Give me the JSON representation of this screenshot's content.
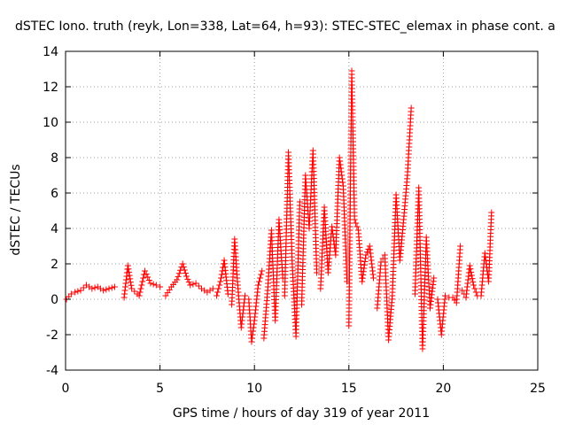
{
  "chart_data": {
    "type": "scatter",
    "title": "dSTEC Iono. truth (reyk, Lon=338, Lat=64, h=93): STEC-STEC_elemax in phase cont. a",
    "xlabel": "GPS time / hours of day 319 of year 2011",
    "ylabel": "dSTEC  / TECUs",
    "xlim": [
      0,
      25
    ],
    "ylim": [
      -4,
      14
    ],
    "xticks": [
      0,
      5,
      10,
      15,
      20,
      25
    ],
    "yticks": [
      -4,
      -2,
      0,
      2,
      4,
      6,
      8,
      10,
      12,
      14
    ],
    "grid": true,
    "marker": "+",
    "color": "#ff0000",
    "series": [
      {
        "segments": [
          {
            "x": [
              0.05,
              0.3,
              0.5,
              0.8,
              1.1,
              1.4,
              1.7,
              2.0,
              2.3,
              2.6
            ],
            "y": [
              0.0,
              0.3,
              0.4,
              0.5,
              0.8,
              0.6,
              0.7,
              0.5,
              0.6,
              0.7
            ]
          },
          {
            "x": [
              3.1,
              3.3,
              3.5,
              3.8
            ],
            "y": [
              0.1,
              1.9,
              0.6,
              0.3
            ]
          },
          {
            "x": [
              3.9,
              4.2,
              4.5,
              4.8,
              5.0
            ],
            "y": [
              0.2,
              1.6,
              0.9,
              0.8,
              0.7
            ]
          },
          {
            "x": [
              5.3,
              5.6,
              5.9,
              6.2,
              6.4,
              6.6,
              6.9,
              7.2,
              7.5,
              7.8
            ],
            "y": [
              0.2,
              0.7,
              1.1,
              2.0,
              1.3,
              0.8,
              0.9,
              0.6,
              0.4,
              0.6
            ]
          },
          {
            "x": [
              8.0,
              8.2,
              8.4,
              8.6
            ],
            "y": [
              0.2,
              1.0,
              2.2,
              0.3
            ]
          },
          {
            "x": [
              8.8,
              8.95,
              9.1,
              9.3,
              9.5
            ],
            "y": [
              -0.3,
              3.4,
              1.0,
              -1.6,
              0.2
            ]
          },
          {
            "x": [
              9.7,
              9.85,
              10.0,
              10.2,
              10.4
            ],
            "y": [
              0.0,
              -2.4,
              -1.2,
              0.8,
              1.6
            ]
          },
          {
            "x": [
              10.5,
              10.7,
              10.9,
              11.1,
              11.3,
              11.5
            ],
            "y": [
              -2.2,
              0.5,
              3.9,
              -1.2,
              4.5,
              1.2
            ]
          },
          {
            "x": [
              11.6,
              11.8,
              12.0,
              12.2,
              12.4
            ],
            "y": [
              0.2,
              8.3,
              2.0,
              -2.1,
              5.5
            ]
          },
          {
            "x": [
              12.5,
              12.7,
              12.9,
              13.1,
              13.3
            ],
            "y": [
              -0.3,
              7.0,
              4.0,
              8.4,
              1.5
            ]
          },
          {
            "x": [
              13.5,
              13.7,
              13.9,
              14.1,
              14.3,
              14.5,
              14.7,
              14.9
            ],
            "y": [
              0.6,
              5.2,
              1.5,
              4.1,
              2.5,
              8.0,
              6.4,
              1.0
            ]
          },
          {
            "x": [
              15.0,
              15.15,
              15.3,
              15.5,
              15.7,
              15.9,
              16.1,
              16.3
            ],
            "y": [
              -1.5,
              12.9,
              4.5,
              3.9,
              1.0,
              2.5,
              3.0,
              1.2
            ]
          },
          {
            "x": [
              16.5,
              16.7,
              16.9,
              17.1,
              17.3,
              17.5,
              17.7,
              17.9,
              18.1,
              18.3
            ],
            "y": [
              -0.5,
              2.1,
              2.5,
              -2.3,
              0.2,
              5.9,
              2.2,
              4.5,
              7.0,
              10.8
            ]
          },
          {
            "x": [
              18.5,
              18.7,
              18.9,
              19.1,
              19.3,
              19.5
            ],
            "y": [
              0.3,
              6.3,
              -2.8,
              3.5,
              -0.5,
              1.2
            ]
          },
          {
            "x": [
              19.7,
              19.9,
              20.1,
              20.3,
              20.5,
              20.7,
              20.9
            ],
            "y": [
              0.0,
              -2.0,
              0.2,
              0.1,
              0.1,
              -0.2,
              3.0
            ]
          },
          {
            "x": [
              21.0,
              21.2,
              21.4,
              21.6,
              21.8
            ],
            "y": [
              0.5,
              0.1,
              1.9,
              0.8,
              0.2
            ]
          },
          {
            "x": [
              22.0,
              22.2,
              22.4,
              22.55
            ],
            "y": [
              0.2,
              2.6,
              1.0,
              4.9
            ]
          }
        ]
      }
    ]
  }
}
